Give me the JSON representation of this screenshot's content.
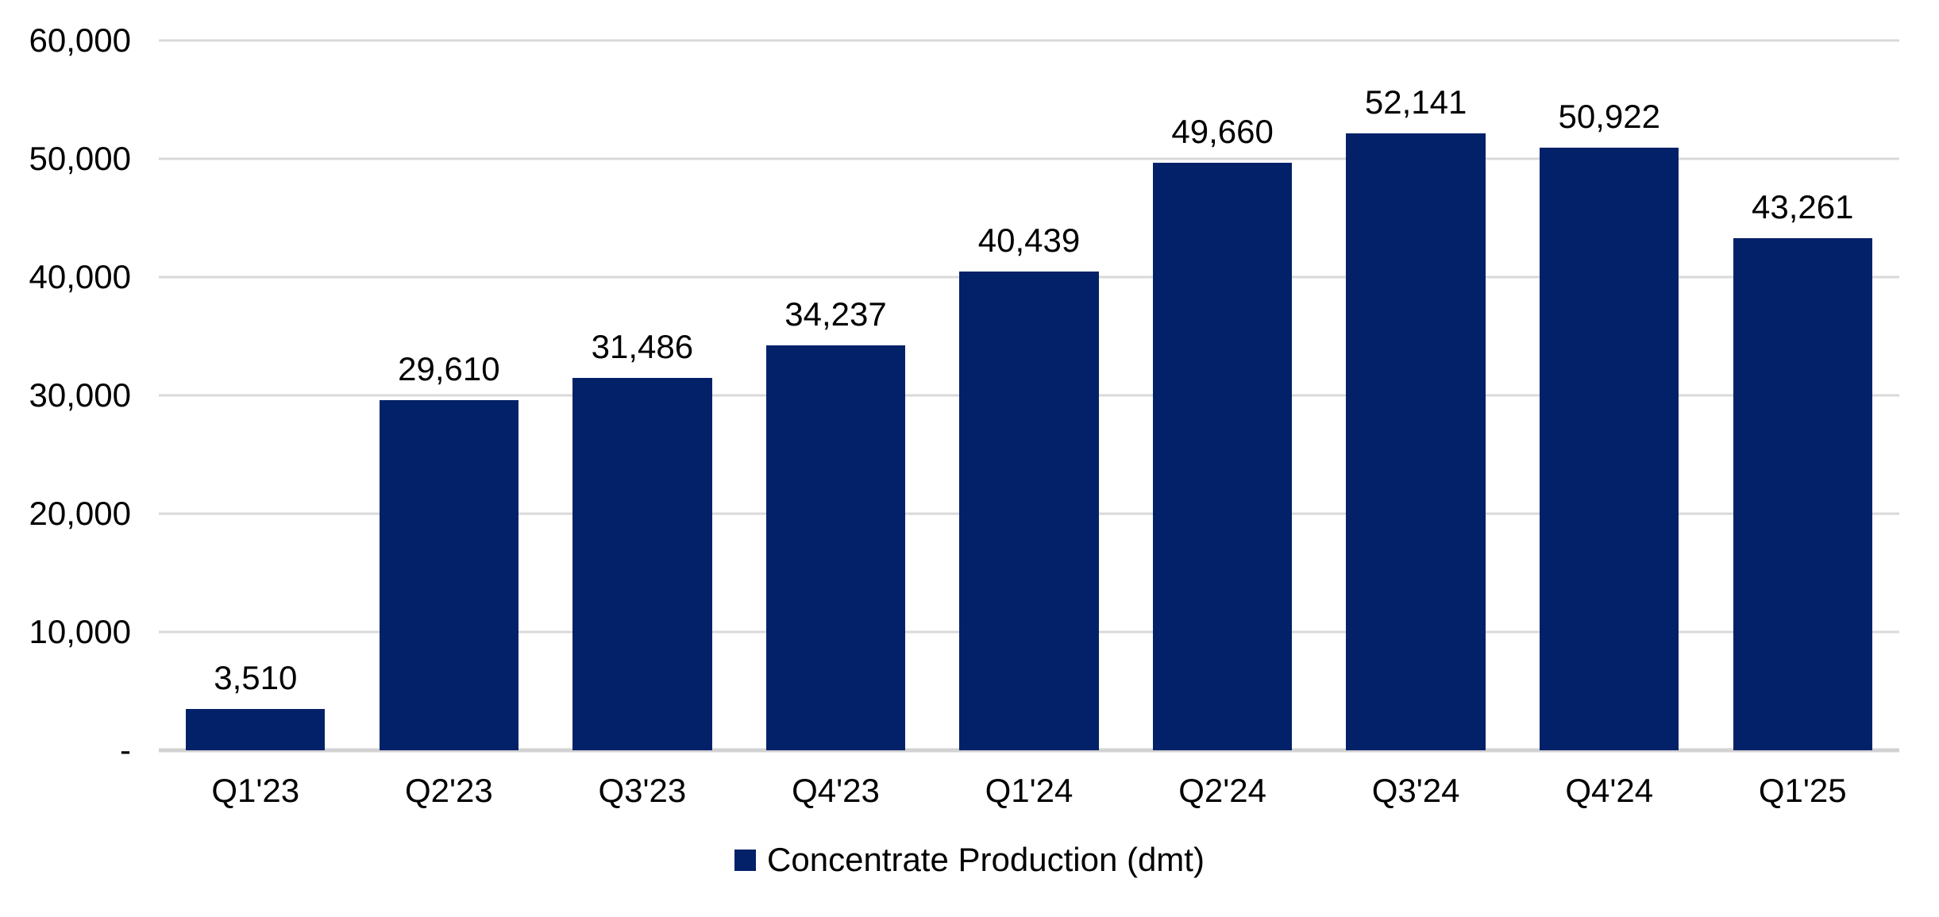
{
  "colors": {
    "bar": "#032169",
    "gridline": "#d9d9d9",
    "axis_line": "#d2d2d2",
    "text": "#000000",
    "background": "#ffffff"
  },
  "legend": {
    "label": "Concentrate Production (dmt)",
    "marker": "navy-square"
  },
  "chart_data": {
    "type": "bar",
    "title": "",
    "xlabel": "",
    "ylabel": "",
    "categories": [
      "Q1'23",
      "Q2'23",
      "Q3'23",
      "Q4'23",
      "Q1'24",
      "Q2'24",
      "Q3'24",
      "Q4'24",
      "Q1'25"
    ],
    "series": [
      {
        "name": "Concentrate Production (dmt)",
        "values": [
          3510,
          29610,
          31486,
          34237,
          40439,
          49660,
          52141,
          50922,
          43261
        ],
        "value_labels": [
          "3,510",
          "29,610",
          "31,486",
          "34,237",
          "40,439",
          "49,660",
          "52,141",
          "50,922",
          "43,261"
        ]
      }
    ],
    "ylim": [
      0,
      60000
    ],
    "y_ticks": [
      {
        "value": 0,
        "label": "-"
      },
      {
        "value": 10000,
        "label": "10,000"
      },
      {
        "value": 20000,
        "label": "20,000"
      },
      {
        "value": 30000,
        "label": "30,000"
      },
      {
        "value": 40000,
        "label": "40,000"
      },
      {
        "value": 50000,
        "label": "50,000"
      },
      {
        "value": 60000,
        "label": "60,000"
      }
    ],
    "grid": "horizontal",
    "legend_position": "bottom-center",
    "data_labels": "above-bars"
  }
}
